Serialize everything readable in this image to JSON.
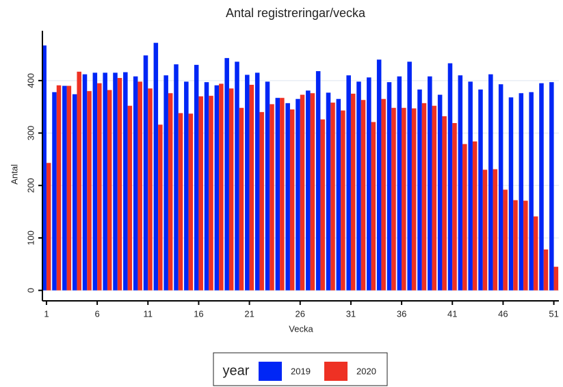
{
  "chart_data": {
    "type": "bar",
    "title": "Antal registreringar/vecka",
    "x_label": "Vecka",
    "y_label": "Antal",
    "x": [
      1,
      2,
      3,
      4,
      5,
      6,
      7,
      8,
      9,
      10,
      11,
      12,
      13,
      14,
      15,
      16,
      17,
      18,
      19,
      20,
      21,
      22,
      23,
      24,
      25,
      26,
      27,
      28,
      29,
      30,
      31,
      32,
      33,
      34,
      35,
      36,
      37,
      38,
      39,
      40,
      41,
      42,
      43,
      44,
      45,
      46,
      47,
      48,
      49,
      50,
      51
    ],
    "series": [
      {
        "name": "2019",
        "color": "#0026f5",
        "values": [
          467,
          378,
          390,
          374,
          412,
          415,
          415,
          415,
          416,
          408,
          448,
          472,
          410,
          431,
          398,
          430,
          397,
          391,
          443,
          436,
          411,
          415,
          398,
          367,
          357,
          365,
          381,
          418,
          377,
          365,
          410,
          398,
          406,
          440,
          397,
          408,
          436,
          383,
          408,
          373,
          433,
          410,
          398,
          383,
          412,
          393,
          368,
          376,
          378,
          395,
          397
        ]
      },
      {
        "name": "2020",
        "color": "#ee3124",
        "values": [
          243,
          391,
          390,
          417,
          380,
          395,
          382,
          405,
          352,
          398,
          385,
          316,
          376,
          338,
          337,
          370,
          371,
          394,
          385,
          348,
          392,
          340,
          355,
          367,
          345,
          373,
          376,
          326,
          358,
          343,
          375,
          363,
          321,
          365,
          348,
          348,
          347,
          357,
          352,
          332,
          319,
          279,
          284,
          230,
          231,
          192,
          172,
          171,
          141,
          78,
          45
        ]
      }
    ],
    "legend_title": "year",
    "xlim": [
      0.6,
      51.5
    ],
    "xticks": [
      1,
      6,
      11,
      16,
      21,
      26,
      31,
      36,
      41,
      46,
      51
    ],
    "ylim": [
      -20,
      495
    ],
    "yticks": [
      0,
      100,
      200,
      300,
      400
    ],
    "grid": true
  }
}
